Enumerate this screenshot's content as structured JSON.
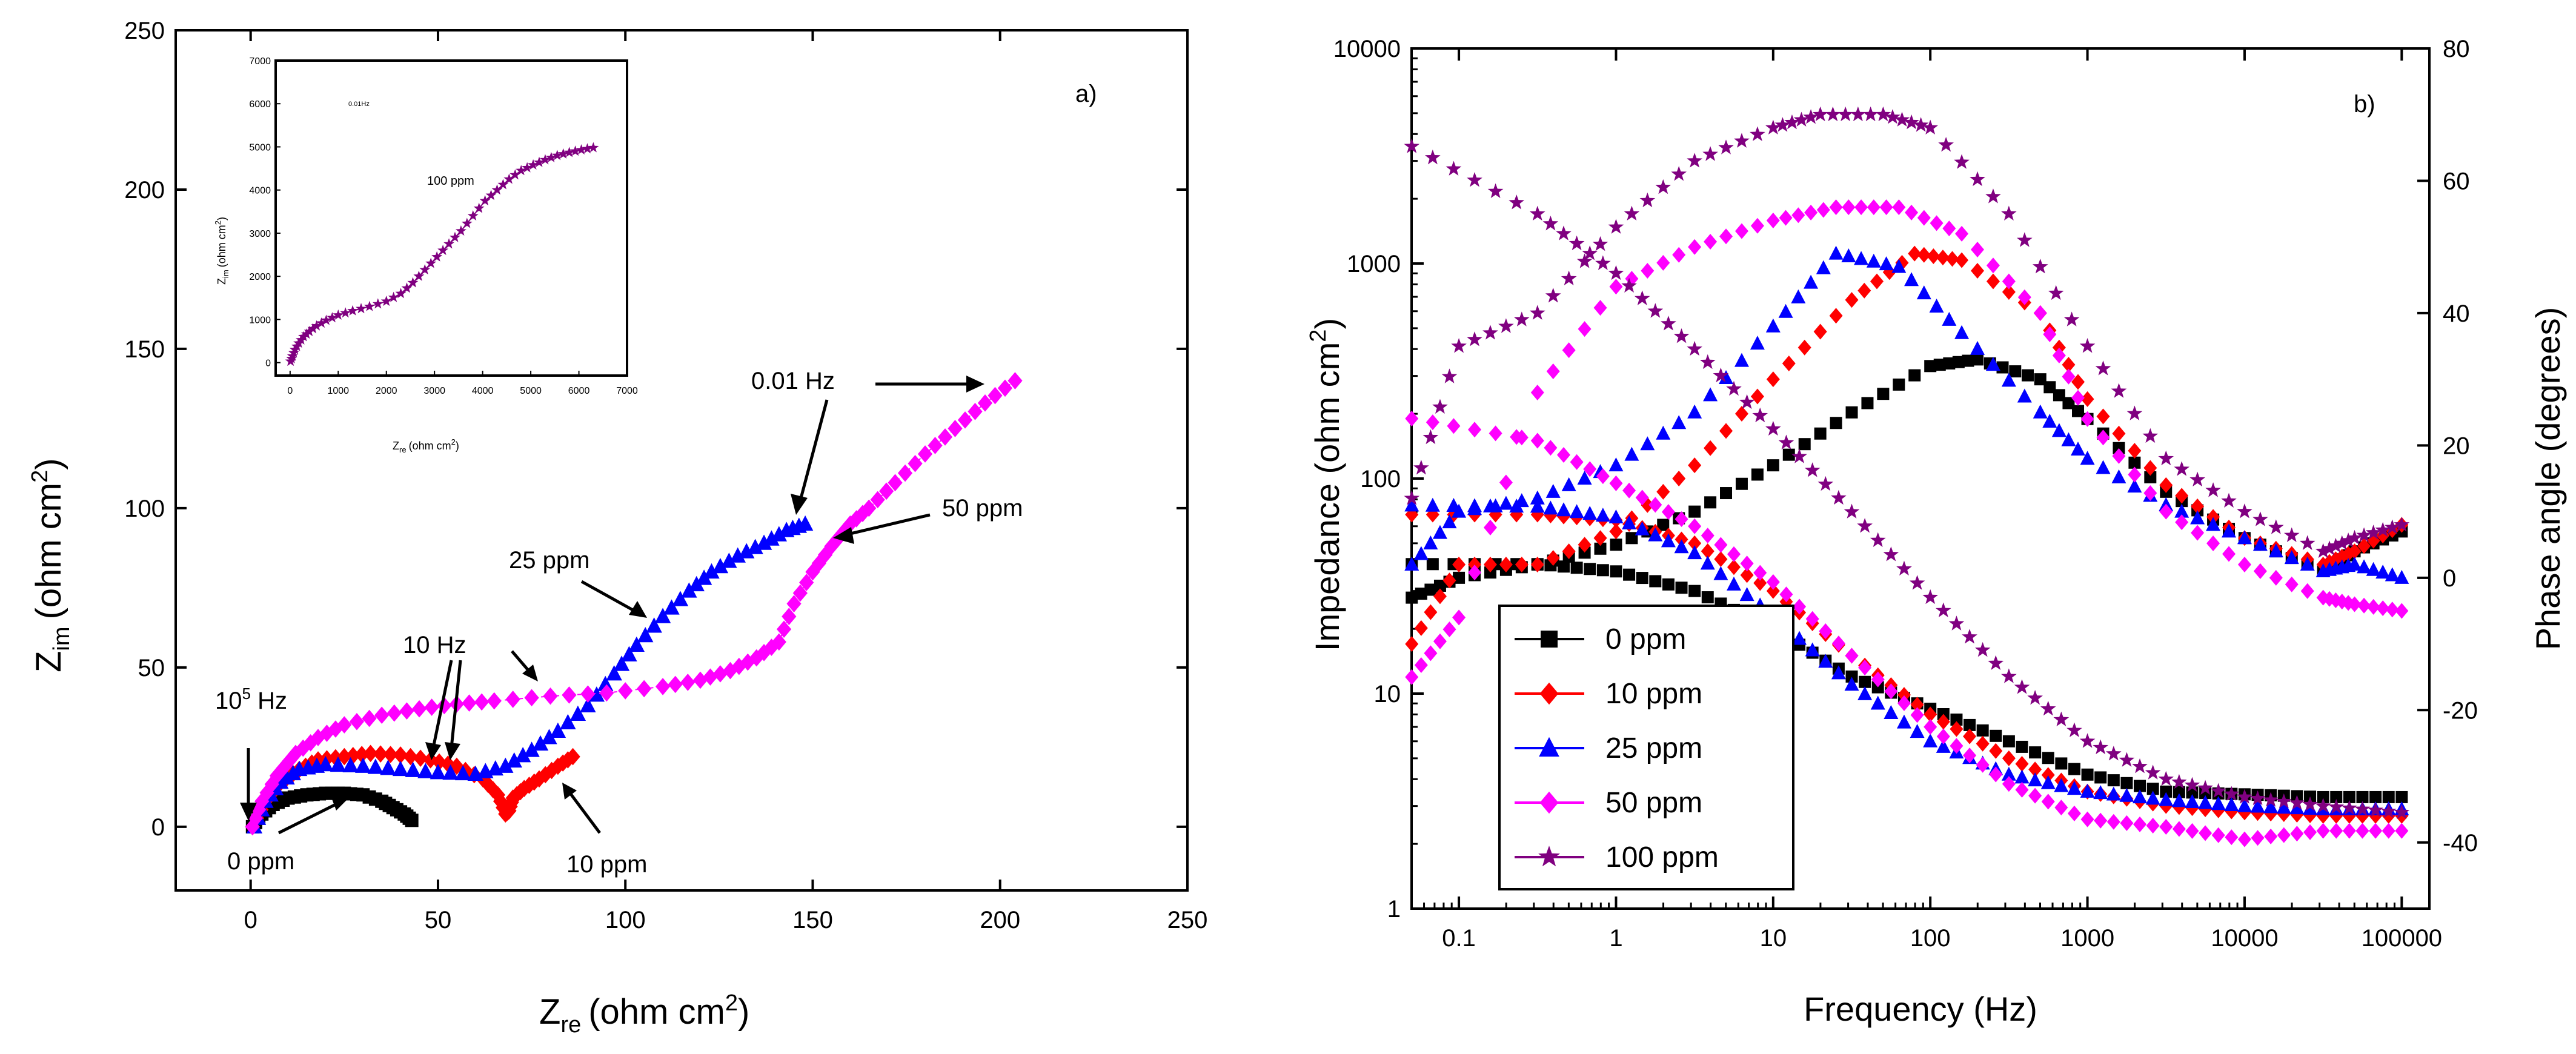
{
  "chart_data": [
    {
      "panel_label": "a)",
      "type": "scatter",
      "title": "",
      "xlabel": {
        "main": "Z",
        "sub": "re",
        "unit": "(ohm cm",
        "sup": "2",
        "close": ")"
      },
      "ylabel": {
        "main": "Z",
        "sub": "im",
        "unit": "(ohm cm",
        "sup": "2",
        "close": ")"
      },
      "xlim": [
        -20,
        250
      ],
      "ylim": [
        -20,
        250
      ],
      "xticks": [
        0,
        50,
        100,
        150,
        200,
        250
      ],
      "yticks": [
        0,
        50,
        100,
        150,
        200,
        250
      ],
      "series": [
        {
          "name": "0 ppm",
          "color": "#000000",
          "marker": "square",
          "x": [
            0.5,
            3,
            6,
            10,
            15,
            20,
            25,
            30,
            35,
            38,
            41,
            43
          ],
          "y": [
            0,
            4,
            7,
            9,
            10,
            10.5,
            10.5,
            10,
            8,
            6,
            4,
            2
          ]
        },
        {
          "name": "10 ppm",
          "color": "#ff0000",
          "marker": "diamond",
          "x": [
            0.5,
            4,
            8,
            13,
            18,
            25,
            32,
            40,
            48,
            55,
            62,
            66,
            68,
            69,
            70,
            73,
            77,
            82,
            86
          ],
          "y": [
            0,
            8,
            14,
            18,
            21,
            22,
            23,
            22.5,
            21,
            19,
            15,
            10,
            4,
            5,
            9,
            12,
            15,
            19,
            22
          ]
        },
        {
          "name": "25 ppm",
          "color": "#0000ff",
          "marker": "triangle",
          "x": [
            1,
            4,
            8,
            13,
            20,
            30,
            40,
            50,
            60,
            68,
            75,
            82,
            90,
            97,
            103,
            110,
            117,
            123,
            130,
            137,
            143,
            148
          ],
          "y": [
            0,
            8,
            14,
            18,
            19.5,
            19,
            18,
            17,
            16.5,
            19,
            24,
            30,
            38,
            48,
            57,
            66,
            74,
            80,
            85,
            89,
            93,
            95
          ]
        },
        {
          "name": "50 ppm",
          "color": "#ff00ff",
          "marker": "diamond",
          "x": [
            0.5,
            3,
            7,
            12,
            18,
            25,
            35,
            45,
            55,
            65,
            80,
            95,
            110,
            120,
            128,
            135,
            141,
            145,
            150,
            155,
            160,
            165,
            172,
            180,
            188,
            196,
            204
          ],
          "y": [
            0,
            8,
            16,
            23,
            28,
            32,
            35,
            37,
            38.5,
            39.5,
            41,
            42,
            44,
            46,
            49,
            53,
            58,
            70,
            80,
            88,
            95,
            100,
            108,
            117,
            125,
            133,
            140
          ]
        }
      ],
      "annotations": [
        {
          "text": "0.01 Hz"
        },
        {
          "text": "50 ppm"
        },
        {
          "text": "25 ppm"
        },
        {
          "text": "10 Hz"
        },
        {
          "text": "10",
          "sup": "5",
          "after": " Hz"
        },
        {
          "text": "0 ppm"
        },
        {
          "text": "10 ppm"
        }
      ],
      "inset": {
        "series_name": "100 ppm",
        "series_color": "#800080",
        "marker": "star",
        "xlabel": {
          "main": "Z",
          "sub": "re",
          "unit": "(ohm cm",
          "sup": "2",
          "close": ")"
        },
        "ylabel": {
          "main": "Z",
          "sub": "im",
          "unit": "(ohm cm",
          "sup": "2",
          "close": ")"
        },
        "xlim": [
          -300,
          7000
        ],
        "ylim": [
          -300,
          7000
        ],
        "xticks": [
          0,
          1000,
          2000,
          3000,
          4000,
          5000,
          6000,
          7000
        ],
        "yticks": [
          0,
          1000,
          2000,
          3000,
          4000,
          5000,
          6000,
          7000
        ],
        "small_label": "0.01Hz",
        "x": [
          10,
          50,
          100,
          180,
          280,
          400,
          550,
          750,
          1000,
          1300,
          1650,
          2000,
          2300,
          2550,
          2800,
          3050,
          3300,
          3550,
          3800,
          4050,
          4300,
          4550,
          4800,
          5050,
          5300,
          5550,
          5800,
          6050,
          6300
        ],
        "y": [
          30,
          150,
          300,
          450,
          600,
          720,
          850,
          980,
          1100,
          1200,
          1300,
          1420,
          1600,
          1850,
          2150,
          2450,
          2750,
          3050,
          3400,
          3750,
          4000,
          4250,
          4450,
          4580,
          4700,
          4800,
          4870,
          4930,
          4980
        ]
      }
    },
    {
      "panel_label": "b)",
      "type": "line",
      "title": "",
      "xlabel": "Frequency (Hz)",
      "ylabel": {
        "main": "Impedance  (ohm cm",
        "sup": "2",
        "close": ")"
      },
      "y2label": "Phase angle  (degrees)",
      "xlim": [
        0.05,
        150000
      ],
      "ylim": [
        1,
        10000
      ],
      "y2lim": [
        -50,
        80
      ],
      "xticks": [
        0.1,
        1,
        10,
        100,
        1000,
        10000,
        100000
      ],
      "xtick_labels": [
        "0.1",
        "1",
        "10",
        "100",
        "1000",
        "10000",
        "100000"
      ],
      "yticks": [
        1,
        10,
        100,
        1000,
        10000
      ],
      "ytick_labels": [
        "1",
        "10",
        "100",
        "1000",
        "10000"
      ],
      "y2ticks": [
        -40,
        -20,
        0,
        20,
        40,
        60,
        80
      ],
      "legend_position": "bottom-left",
      "series": [
        {
          "name": "0 ppm",
          "color": "#000000",
          "marker": "square",
          "impedance": {
            "logf": [
              -1.3,
              -0.5,
              0,
              0.5,
              1,
              1.5,
              2,
              2.5,
              3,
              3.5,
              4,
              4.5,
              5
            ],
            "values": [
              40,
              40,
              37,
              30,
              20,
              12,
              8.5,
              6,
              4.2,
              3.5,
              3.4,
              3.3,
              3.3
            ]
          },
          "phase": {
            "logf": [
              -1.3,
              -1,
              -0.5,
              0,
              0.5,
              1,
              1.5,
              2,
              2.3,
              2.7,
              3,
              3.5,
              4,
              4.5,
              4.7,
              5
            ],
            "values": [
              -3,
              0,
              2,
              5,
              10,
              17,
              25,
              32,
              33,
              30,
              24,
              13,
              6,
              1,
              4,
              7
            ]
          }
        },
        {
          "name": "10 ppm",
          "color": "#ff0000",
          "marker": "diamond",
          "impedance": {
            "logf": [
              -1.3,
              -0.5,
              0,
              0.5,
              1,
              1.5,
              2,
              2.5,
              3,
              3.5,
              4,
              4.5,
              5
            ],
            "values": [
              68,
              68,
              64,
              50,
              30,
              15,
              8,
              5,
              3.5,
              3,
              2.8,
              2.7,
              2.7
            ]
          },
          "phase": {
            "logf": [
              -1.3,
              -1,
              -0.5,
              0,
              0.5,
              1,
              1.5,
              1.9,
              2.2,
              2.7,
              3,
              3.5,
              4,
              4.5,
              4.7,
              5
            ],
            "values": [
              -10,
              2,
              2,
              7,
              17,
              30,
              42,
              49,
              48,
              40,
              27,
              14,
              6,
              2,
              4,
              8
            ]
          }
        },
        {
          "name": "25 ppm",
          "color": "#0000ff",
          "marker": "triangle",
          "impedance": {
            "logf": [
              -1.3,
              -0.5,
              0,
              0.5,
              1,
              1.5,
              2,
              2.5,
              3,
              3.5,
              4,
              4.5,
              5
            ],
            "values": [
              75,
              74,
              66,
              45,
              23,
              11,
              6,
              4.2,
              3.5,
              3.2,
              3,
              2.9,
              2.9
            ]
          },
          "phase": {
            "logf": [
              -1.3,
              -1,
              -0.5,
              0,
              0.5,
              1,
              1.4,
              1.8,
              2.2,
              2.7,
              3,
              3.5,
              4,
              4.5,
              4.7,
              5
            ],
            "values": [
              2,
              10,
              12,
              17,
              25,
              38,
              49,
              47,
              37,
              25,
              18,
              11,
              6,
              1,
              2,
              0
            ]
          }
        },
        {
          "name": "50 ppm",
          "color": "#ff00ff",
          "marker": "diamond",
          "impedance": {
            "logf": [
              -1.3,
              -0.5,
              0,
              0.5,
              1,
              1.5,
              2,
              2.5,
              3,
              3.5,
              4,
              4.5,
              5
            ],
            "values": [
              190,
              150,
              95,
              60,
              33,
              15,
              7,
              3.8,
              2.6,
              2.4,
              2.1,
              2.3,
              2.3
            ]
          },
          "phase": {
            "logf": [
              -1.3,
              -1,
              -0.5,
              0,
              0.5,
              1,
              1.4,
              1.8,
              2.2,
              2.7,
              3,
              3.5,
              4,
              4.5,
              4.7,
              5
            ],
            "values": [
              -15,
              -6,
              28,
              44,
              50,
              54,
              56,
              56,
              52,
              40,
              24,
              10,
              2,
              -3,
              -4,
              -5
            ]
          }
        },
        {
          "name": "100 ppm",
          "color": "#800080",
          "marker": "star",
          "impedance": {
            "logf": [
              -1.3,
              -0.5,
              0,
              0.5,
              1,
              1.5,
              2,
              2.5,
              3,
              3.5,
              4,
              4.5,
              5
            ],
            "values": [
              3500,
              1700,
              900,
              400,
              170,
              70,
              28,
              12,
              6,
              4,
              3.3,
              3,
              2.8
            ]
          },
          "phase": {
            "logf": [
              -1.3,
              -1,
              -0.5,
              0,
              0.5,
              1,
              1.3,
              1.7,
              2,
              2.5,
              3,
              3.5,
              4,
              4.5,
              4.7,
              5
            ],
            "values": [
              12,
              35,
              40,
              53,
              63,
              68,
              70,
              70,
              68,
              55,
              35,
              18,
              10,
              4,
              6,
              8
            ]
          }
        }
      ]
    }
  ]
}
